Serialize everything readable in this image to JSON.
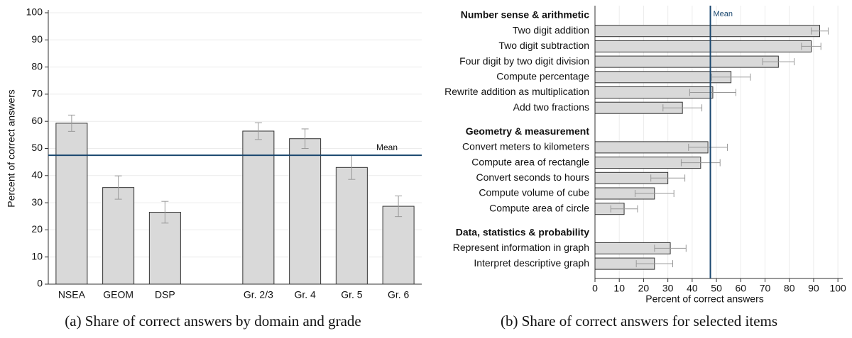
{
  "chart_data": [
    {
      "type": "bar",
      "y_label": "Percent of correct answers",
      "categories": [
        "NSEA",
        "GEOM",
        "DSP",
        null,
        "Gr. 2/3",
        "Gr. 4",
        "Gr. 5",
        "Gr. 6"
      ],
      "values": [
        59.3,
        35.6,
        26.5,
        null,
        56.4,
        53.6,
        43.0,
        28.7
      ],
      "errors": [
        3.0,
        4.3,
        4.0,
        null,
        3.1,
        3.6,
        4.4,
        3.8
      ],
      "color": "#d9d9d9",
      "ylim": [
        0,
        100
      ],
      "yticks": [
        0,
        10,
        20,
        30,
        40,
        50,
        60,
        70,
        80,
        90,
        100
      ],
      "grid": true,
      "mean": {
        "value": 47.5,
        "label": "Mean"
      },
      "caption": "(a) Share of correct answers by domain and grade"
    },
    {
      "type": "barh",
      "x_label": "Percent of correct answers",
      "groups": [
        {
          "name": "Number sense & arithmetic",
          "categories": [
            "Two digit addition",
            "Two digit subtraction",
            "Four digit by two digit division",
            "Compute percentage",
            "Rewrite addition as multiplication",
            "Add two fractions"
          ],
          "values": [
            92.5,
            89,
            75.5,
            56,
            48.5,
            36
          ],
          "errors": [
            3.5,
            4,
            6.5,
            8,
            9.5,
            8
          ]
        },
        {
          "name": "Geometry & measurement",
          "categories": [
            "Convert meters to kilometers",
            "Compute area of rectangle",
            "Convert seconds to hours",
            "Compute volume of cube",
            "Compute area of circle"
          ],
          "values": [
            46.5,
            43.5,
            30,
            24.5,
            12
          ],
          "errors": [
            8,
            8,
            7,
            8,
            5.5
          ]
        },
        {
          "name": "Data, statistics & probability",
          "categories": [
            "Represent information in graph",
            "Interpret descriptive graph"
          ],
          "values": [
            31,
            24.5
          ],
          "errors": [
            6.5,
            7.5
          ]
        }
      ],
      "color": "#d9d9d9",
      "xlim": [
        0,
        102
      ],
      "xticks": [
        0,
        10,
        20,
        30,
        40,
        50,
        60,
        70,
        80,
        90,
        100
      ],
      "grid": true,
      "mean": {
        "value": 47.5,
        "label": "Mean"
      },
      "caption": "(b) Share of correct answers for selected items"
    }
  ]
}
